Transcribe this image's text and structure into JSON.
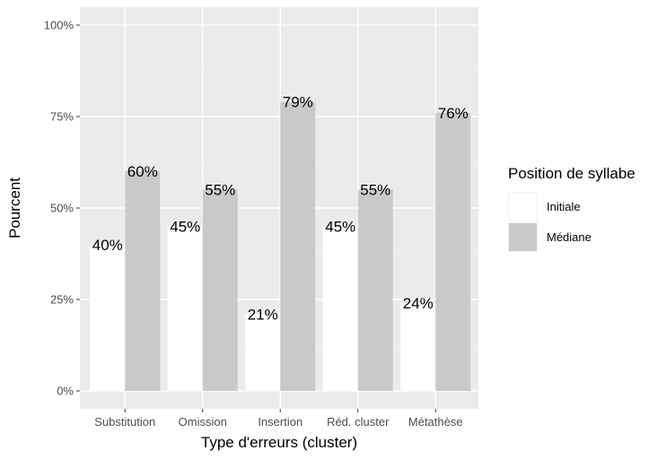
{
  "chart_data": {
    "type": "bar",
    "title": "",
    "xlabel": "Type d'erreurs (cluster)",
    "ylabel": "Pourcent",
    "categories": [
      "Substitution",
      "Omission",
      "Insertion",
      "Réd. cluster",
      "Métathèse"
    ],
    "series": [
      {
        "name": "Initiale",
        "color": "#ffffff",
        "values": [
          40,
          45,
          21,
          45,
          24
        ],
        "labels": [
          "40%",
          "45%",
          "21%",
          "45%",
          "24%"
        ]
      },
      {
        "name": "Médiane",
        "color": "#c9c9c9",
        "values": [
          60,
          55,
          79,
          55,
          76
        ],
        "labels": [
          "60%",
          "55%",
          "79%",
          "55%",
          "76%"
        ]
      }
    ],
    "ylim": [
      0,
      100
    ],
    "yticks": [
      0,
      25,
      50,
      75,
      100
    ],
    "ytick_labels": [
      "0%",
      "25%",
      "50%",
      "75%",
      "100%"
    ],
    "grid": true,
    "panel_background": "#ebebeb",
    "legend_title": "Position de syllabe",
    "legend_position": "right"
  }
}
